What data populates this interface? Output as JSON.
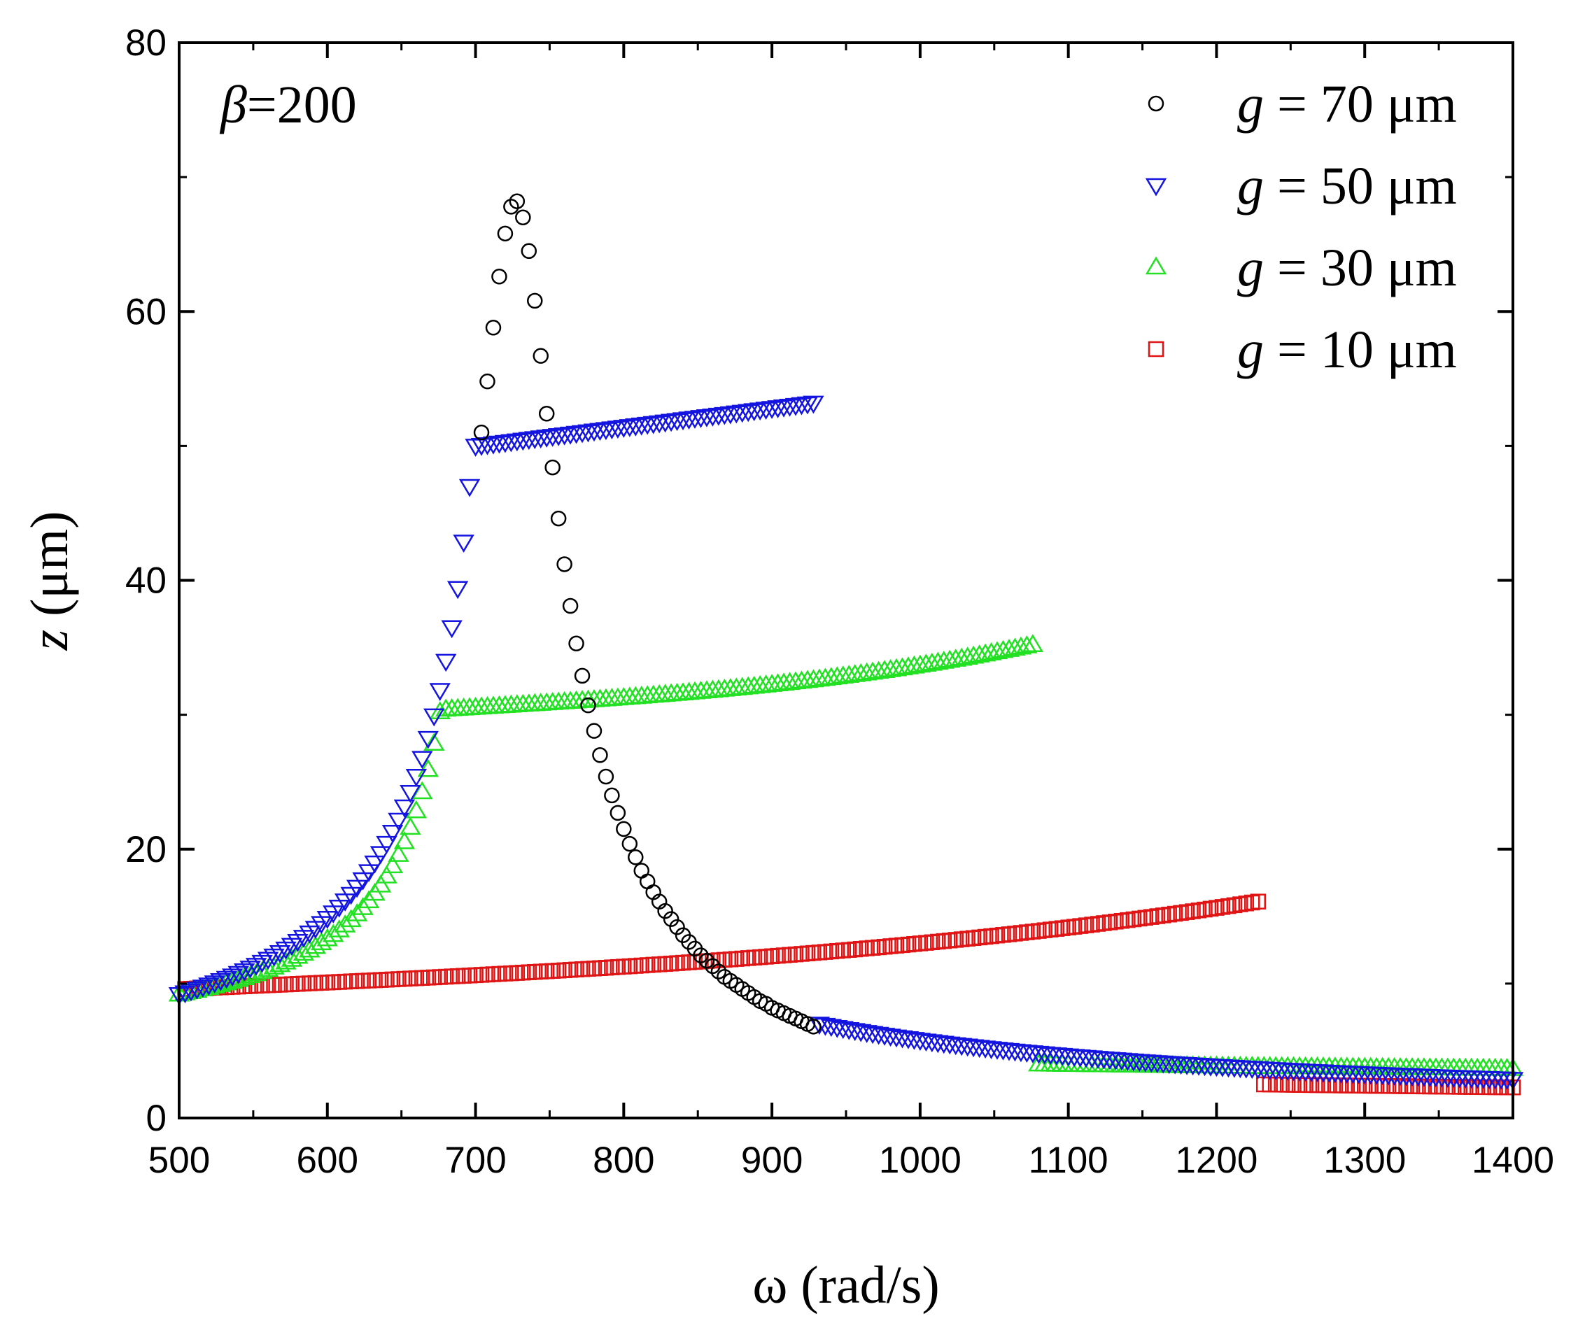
{
  "chart_data": {
    "type": "scatter",
    "title": "",
    "annotation": {
      "symbol": "β",
      "text": "=200"
    },
    "xlabel": "ω (rad/s)",
    "ylabel": {
      "var": "z",
      "unit": " (μm)"
    },
    "xlim": [
      500,
      1400
    ],
    "ylim": [
      0,
      80
    ],
    "xticks": [
      500,
      600,
      700,
      800,
      900,
      1000,
      1100,
      1200,
      1300,
      1400
    ],
    "yticks": [
      0,
      20,
      40,
      60,
      80
    ],
    "legend_position": "top-right",
    "grid": false,
    "series": [
      {
        "name": "g = 70 μm",
        "legend_var": "g",
        "legend_rest": " = 70 μm",
        "marker": "circle",
        "color": "#000000",
        "points": [
          [
            704,
            51.0
          ],
          [
            708,
            54.8
          ],
          [
            712,
            58.8
          ],
          [
            716,
            62.6
          ],
          [
            720,
            65.8
          ],
          [
            724,
            67.8
          ],
          [
            728,
            68.2
          ],
          [
            732,
            67.0
          ],
          [
            736,
            64.5
          ],
          [
            740,
            60.8
          ],
          [
            744,
            56.7
          ],
          [
            748,
            52.4
          ],
          [
            752,
            48.4
          ],
          [
            756,
            44.6
          ],
          [
            760,
            41.2
          ],
          [
            764,
            38.1
          ],
          [
            768,
            35.3
          ],
          [
            772,
            32.9
          ],
          [
            776,
            30.7
          ],
          [
            780,
            28.8
          ],
          [
            784,
            27.0
          ],
          [
            788,
            25.4
          ],
          [
            792,
            24.0
          ],
          [
            796,
            22.7
          ],
          [
            800,
            21.5
          ],
          [
            804,
            20.4
          ],
          [
            808,
            19.4
          ],
          [
            812,
            18.4
          ],
          [
            816,
            17.6
          ],
          [
            820,
            16.8
          ],
          [
            824,
            16.1
          ],
          [
            828,
            15.4
          ],
          [
            832,
            14.8
          ],
          [
            836,
            14.2
          ],
          [
            840,
            13.6
          ],
          [
            844,
            13.1
          ],
          [
            848,
            12.6
          ],
          [
            852,
            12.1
          ],
          [
            856,
            11.7
          ],
          [
            860,
            11.3
          ],
          [
            864,
            10.9
          ],
          [
            868,
            10.5
          ],
          [
            872,
            10.2
          ],
          [
            876,
            9.9
          ],
          [
            880,
            9.6
          ],
          [
            884,
            9.3
          ],
          [
            888,
            9.0
          ],
          [
            892,
            8.7
          ],
          [
            896,
            8.5
          ],
          [
            900,
            8.2
          ],
          [
            904,
            8.0
          ],
          [
            908,
            7.8
          ],
          [
            912,
            7.6
          ],
          [
            916,
            7.4
          ],
          [
            920,
            7.2
          ],
          [
            924,
            7.0
          ],
          [
            928,
            6.8
          ]
        ]
      },
      {
        "name": "g = 50 μm",
        "legend_var": "g",
        "legend_rest": " = 50 μm",
        "marker": "triangle-down",
        "color": "#1414e0",
        "segments": [
          {
            "from": 500,
            "to": 696,
            "curve": "resonance_low",
            "peak": 47.0
          },
          {
            "from": 700,
            "to": 928,
            "start": 50.0,
            "end": 53.2,
            "curve": "linear"
          },
          {
            "from": 932,
            "to": 1400,
            "start": 7.0,
            "end": 1.2,
            "curve": "decay"
          }
        ]
      },
      {
        "name": "g = 30 μm",
        "legend_var": "g",
        "legend_rest": " = 30 μm",
        "marker": "triangle-up",
        "color": "#22e022",
        "segments": [
          {
            "from": 500,
            "to": 676,
            "curve": "resonance_low",
            "peak": 30.2
          },
          {
            "from": 680,
            "to": 1076,
            "start": 30.4,
            "end": 35.2,
            "curve": "rising"
          },
          {
            "from": 1080,
            "to": 1400,
            "start": 4.0,
            "end": 2.2,
            "curve": "decay"
          }
        ]
      },
      {
        "name": "g = 10 μm",
        "legend_var": "g",
        "legend_rest": " = 10 μm",
        "marker": "square",
        "color": "#e01414",
        "segments": [
          {
            "from": 504,
            "to": 1228,
            "start": 9.6,
            "end": 16.1,
            "curve": "rising"
          },
          {
            "from": 1232,
            "to": 1400,
            "start": 2.5,
            "end": 1.8,
            "curve": "decay"
          }
        ]
      }
    ]
  }
}
